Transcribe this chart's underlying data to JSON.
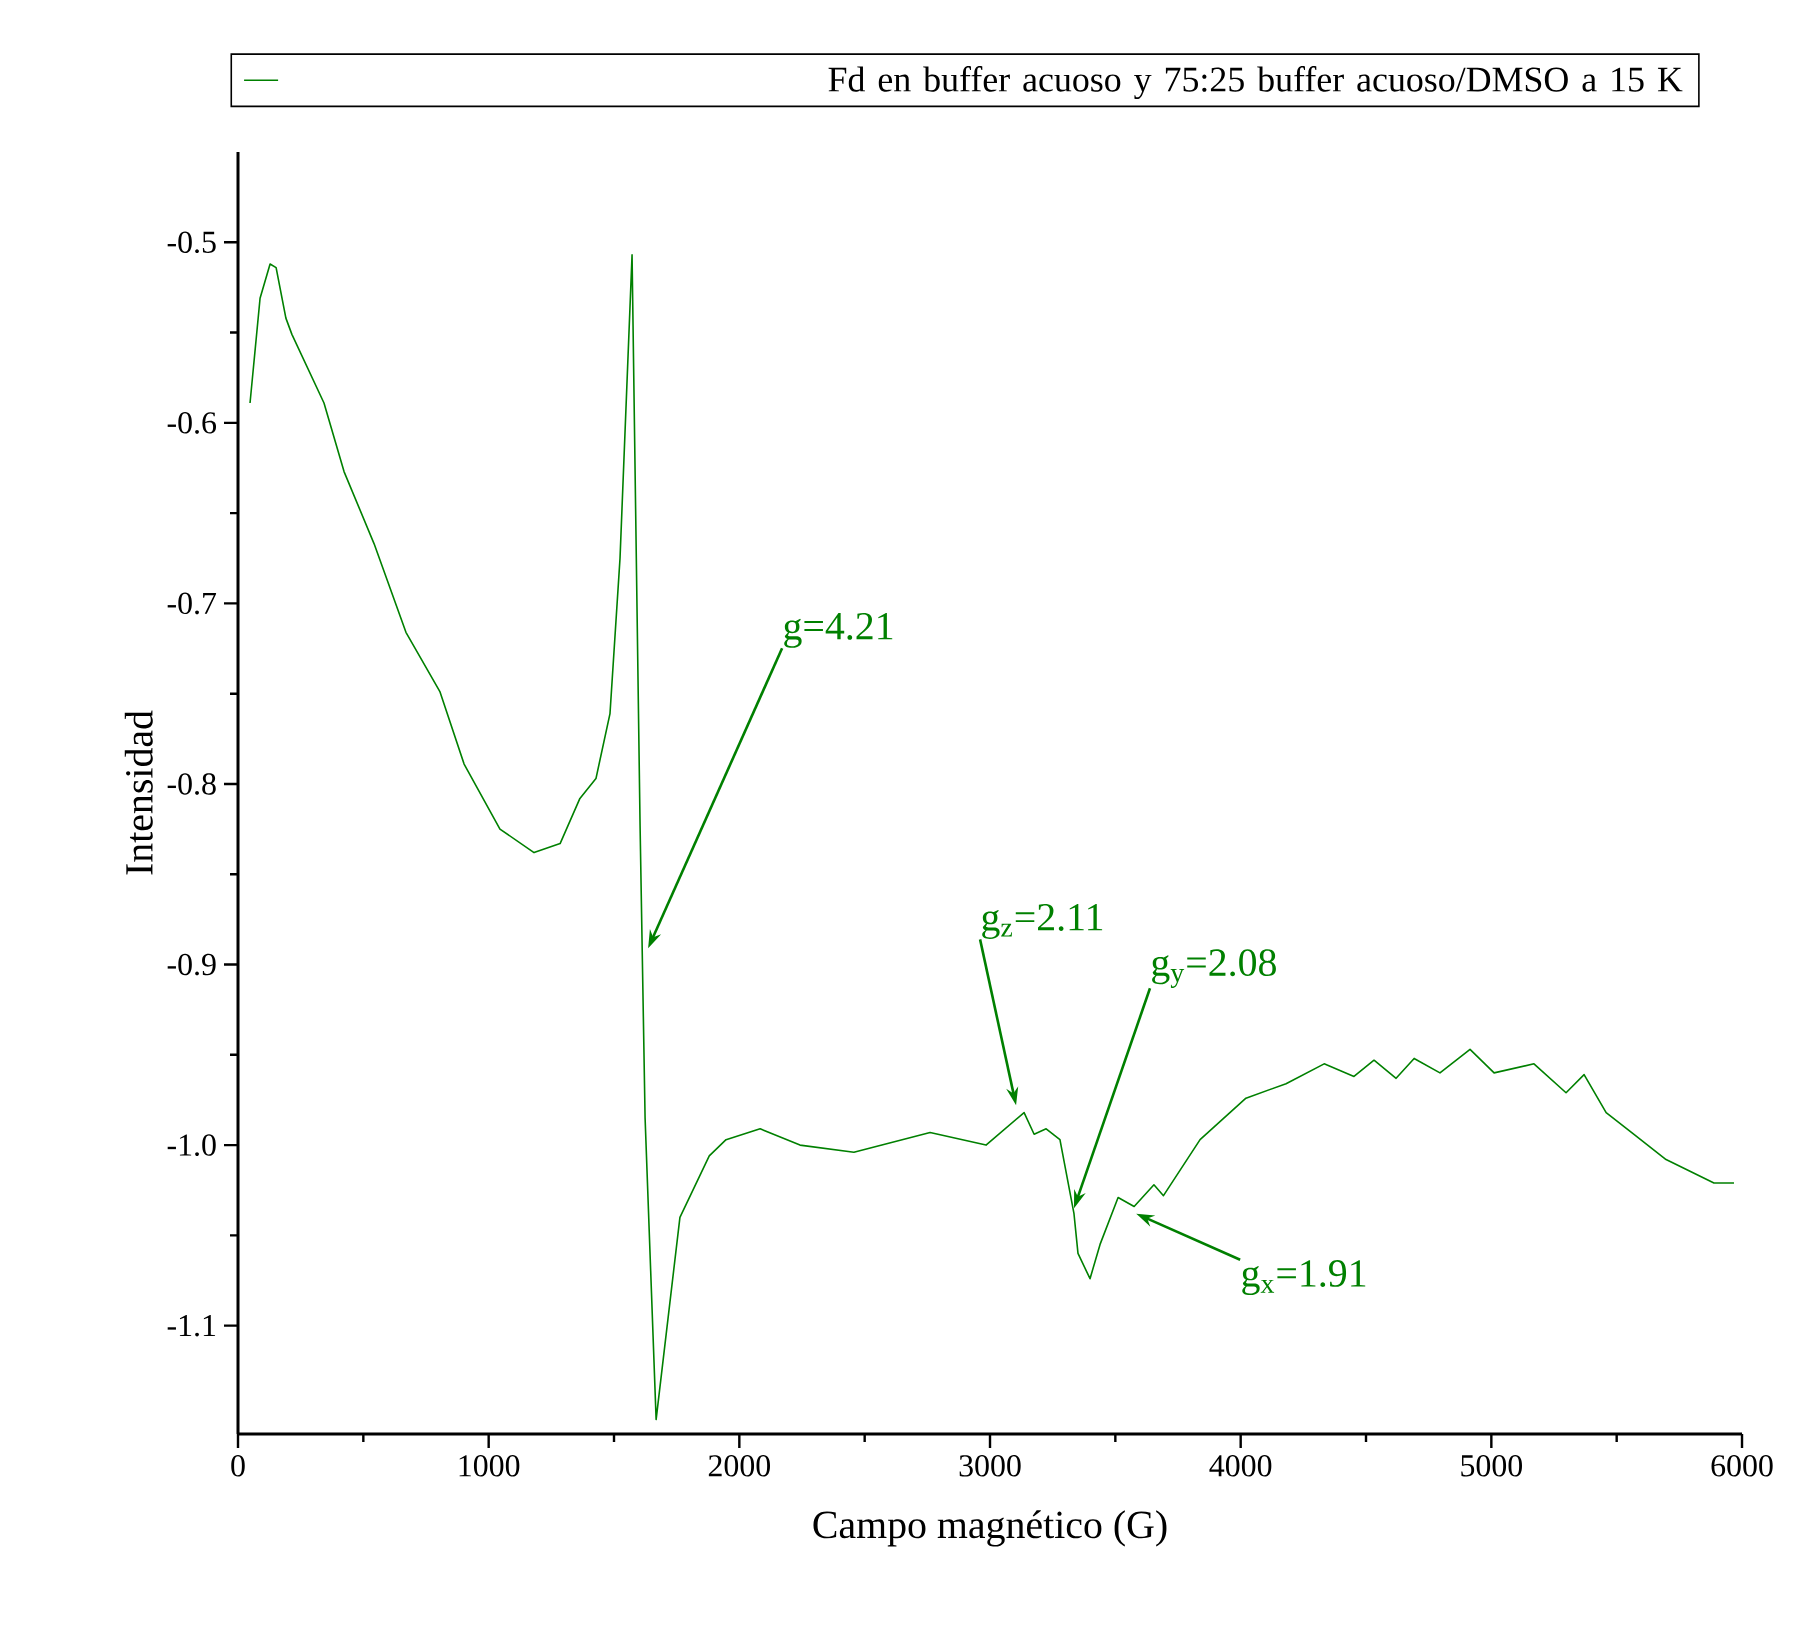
{
  "chart_data": {
    "type": "line",
    "xlabel": "Campo magnético (G)",
    "ylabel": "Intensidad",
    "xlim": [
      0,
      6000
    ],
    "xticks": [
      0,
      1000,
      2000,
      3000,
      4000,
      5000,
      6000
    ],
    "ylim": [
      -1.16,
      -0.45
    ],
    "yticks": [
      -1.1,
      {
        "value": -1.0,
        "label": "-1.0"
      },
      -0.9,
      -0.8,
      -0.7,
      -0.6,
      -0.5
    ],
    "legend": "top",
    "grid": false,
    "series": [
      {
        "name": "Fd en buffer acuoso y 75:25 buffer acuoso/DMSO  a 15 K",
        "color": "#008000",
        "x": [
          48,
          88,
          128,
          152,
          191,
          215,
          343,
          423,
          543,
          670,
          806,
          902,
          1045,
          1181,
          1285,
          1364,
          1428,
          1484,
          1524,
          1572,
          1604,
          1624,
          1668,
          1763,
          1880,
          1947,
          2083,
          2242,
          2457,
          2761,
          2984,
          3136,
          3176,
          3224,
          3279,
          3335,
          3351,
          3399,
          3439,
          3511,
          3575,
          3654,
          3692,
          3838,
          4021,
          4181,
          4333,
          4452,
          4532,
          4620,
          4692,
          4795,
          4915,
          5011,
          5170,
          5298,
          5370,
          5458,
          5569,
          5697,
          5888,
          5968
        ],
        "values": [
          -0.589,
          -0.531,
          -0.512,
          -0.514,
          -0.542,
          -0.551,
          -0.589,
          -0.627,
          -0.667,
          -0.716,
          -0.749,
          -0.789,
          -0.825,
          -0.838,
          -0.833,
          -0.808,
          -0.797,
          -0.761,
          -0.675,
          -0.507,
          -0.823,
          -0.985,
          -1.152,
          -1.04,
          -1.006,
          -0.997,
          -0.991,
          -1.0,
          -1.004,
          -0.993,
          -1.0,
          -0.982,
          -0.994,
          -0.991,
          -0.997,
          -1.038,
          -1.06,
          -1.074,
          -1.055,
          -1.029,
          -1.034,
          -1.022,
          -1.028,
          -0.997,
          -0.974,
          -0.966,
          -0.955,
          -0.962,
          -0.953,
          -0.963,
          -0.952,
          -0.96,
          -0.947,
          -0.96,
          -0.955,
          -0.971,
          -0.961,
          -0.982,
          -0.994,
          -1.008,
          -1.021,
          -1.021
        ]
      }
    ],
    "annotations": [
      {
        "text": "g=4.21",
        "x": 1636,
        "y": -0.891
      },
      {
        "text": "g$_{z}$=2.11",
        "x": 3104,
        "y": -0.978
      },
      {
        "text": "g$_{y}$=2.08",
        "x": 3335,
        "y": -1.035
      },
      {
        "text": "g$_{x}$=1.91",
        "x": 3583,
        "y": -1.038
      }
    ]
  }
}
